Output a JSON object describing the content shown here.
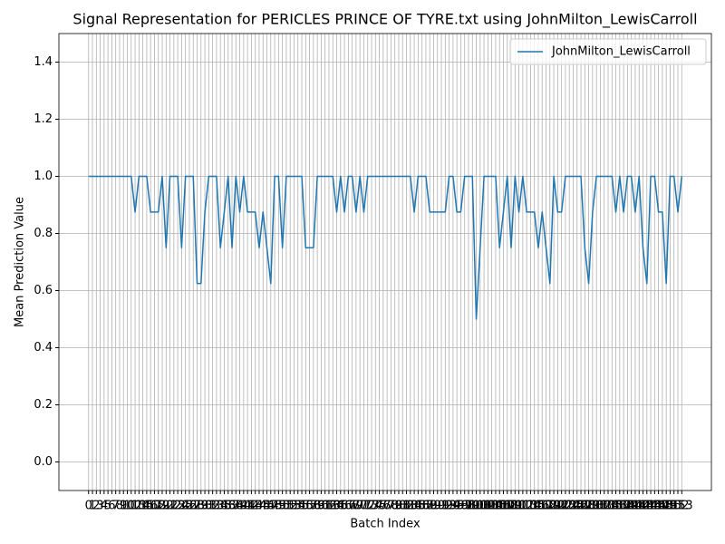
{
  "chart_data": {
    "type": "line",
    "title": "Signal Representation for PERICLES PRINCE OF TYRE.txt using JohnMilton_LewisCarroll",
    "x_label": "Batch Index",
    "y_label": "Mean Prediction Value",
    "x": [
      0,
      1,
      2,
      3,
      4,
      5,
      6,
      7,
      8,
      9,
      10,
      11,
      12,
      13,
      14,
      15,
      16,
      17,
      18,
      19,
      20,
      21,
      22,
      23,
      24,
      25,
      26,
      27,
      28,
      29,
      30,
      31,
      32,
      33,
      34,
      35,
      36,
      37,
      38,
      39,
      40,
      41,
      42,
      43,
      44,
      45,
      46,
      47,
      48,
      49,
      50,
      51,
      52,
      53,
      54,
      55,
      56,
      57,
      58,
      59,
      60,
      61,
      62,
      63,
      64,
      65,
      66,
      67,
      68,
      69,
      70,
      71,
      72,
      73,
      74,
      75,
      76,
      77,
      78,
      79,
      80,
      81,
      82,
      83,
      84,
      85,
      86,
      87,
      88,
      89,
      90,
      91,
      92,
      93,
      94,
      95,
      96,
      97,
      98,
      99,
      100,
      101,
      102,
      103,
      104,
      105,
      106,
      107,
      108,
      109,
      110,
      111,
      112,
      113,
      114,
      115,
      116,
      117,
      118,
      119,
      120,
      121,
      122,
      123,
      124,
      125,
      126,
      127,
      128,
      129,
      130,
      131,
      132,
      133,
      134,
      135,
      136,
      137,
      138,
      139,
      140,
      141,
      142,
      143,
      144,
      145,
      146,
      147,
      148,
      149,
      150,
      151,
      152,
      153
    ],
    "series": [
      {
        "name": "JohnMilton_LewisCarroll",
        "color": "#1f77b4",
        "values": [
          1,
          1,
          1,
          1,
          1,
          1,
          1,
          1,
          1,
          1,
          1,
          1,
          0.875,
          1,
          1,
          1,
          0.875,
          0.875,
          0.875,
          1,
          0.75,
          1,
          1,
          1,
          0.75,
          1,
          1,
          1,
          0.625,
          0.625,
          0.875,
          1,
          1,
          1,
          0.75,
          0.875,
          1,
          0.75,
          1,
          0.875,
          1,
          0.875,
          0.875,
          0.875,
          0.75,
          0.875,
          0.75,
          0.625,
          1,
          1,
          0.75,
          1,
          1,
          1,
          1,
          1,
          0.75,
          0.75,
          0.75,
          1,
          1,
          1,
          1,
          1,
          0.875,
          1,
          0.875,
          1,
          1,
          0.875,
          1,
          0.875,
          1,
          1,
          1,
          1,
          1,
          1,
          1,
          1,
          1,
          1,
          1,
          1,
          0.875,
          1,
          1,
          1,
          0.875,
          0.875,
          0.875,
          0.875,
          0.875,
          1,
          1,
          0.875,
          0.875,
          1,
          1,
          1,
          0.5,
          0.75,
          1,
          1,
          1,
          1,
          0.75,
          0.875,
          1,
          0.75,
          1,
          0.875,
          1,
          0.875,
          0.875,
          0.875,
          0.75,
          0.875,
          0.75,
          0.625,
          1,
          0.875,
          0.875,
          1,
          1,
          1,
          1,
          1,
          0.75,
          0.625,
          0.875,
          1,
          1,
          1,
          1,
          1,
          0.875,
          1,
          0.875,
          1,
          1,
          0.875,
          1,
          0.75,
          0.625,
          1,
          1,
          0.875,
          0.875,
          0.625,
          1,
          1,
          0.875,
          1
        ]
      }
    ],
    "xlim": [
      -7.65,
      160.65
    ],
    "xticks": [
      0,
      1,
      2,
      3,
      4,
      5,
      6,
      7,
      8,
      9,
      10,
      11,
      12,
      13,
      14,
      15,
      16,
      17,
      18,
      19,
      20,
      21,
      22,
      23,
      24,
      25,
      26,
      27,
      28,
      29,
      30,
      31,
      32,
      33,
      34,
      35,
      36,
      37,
      38,
      39,
      40,
      41,
      42,
      43,
      44,
      45,
      46,
      47,
      48,
      49,
      50,
      51,
      52,
      53,
      54,
      55,
      56,
      57,
      58,
      59,
      60,
      61,
      62,
      63,
      64,
      65,
      66,
      67,
      68,
      69,
      70,
      71,
      72,
      73,
      74,
      75,
      76,
      77,
      78,
      79,
      80,
      81,
      82,
      83,
      84,
      85,
      86,
      87,
      88,
      89,
      90,
      91,
      92,
      93,
      94,
      95,
      96,
      97,
      98,
      99,
      100,
      101,
      102,
      103,
      104,
      105,
      106,
      107,
      108,
      109,
      110,
      111,
      112,
      113,
      114,
      115,
      116,
      117,
      118,
      119,
      120,
      121,
      122,
      123,
      124,
      125,
      126,
      127,
      128,
      129,
      130,
      131,
      132,
      133,
      134,
      135,
      136,
      137,
      138,
      139,
      140,
      141,
      142,
      143,
      144,
      145,
      146,
      147,
      148,
      149,
      150,
      151,
      152,
      153
    ],
    "ylim": [
      -0.1,
      1.5
    ],
    "yticks": [
      {
        "value": 0,
        "label": "0.0"
      },
      0.2,
      0.4,
      0.6,
      0.8,
      {
        "value": 1,
        "label": "1.0"
      },
      1.2,
      1.4
    ],
    "grid": true,
    "legend": "upper right"
  }
}
